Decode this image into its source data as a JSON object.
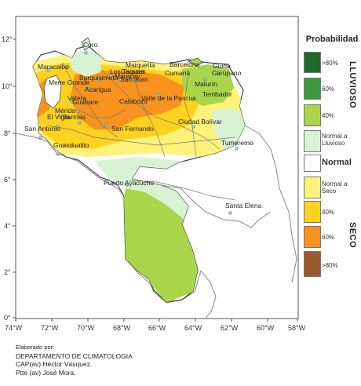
{
  "legend": {
    "title": "Probabilidad",
    "side_lluvioso": "LLUVIOSO",
    "side_seco": "SECO",
    "entries": [
      {
        "label": ">80%",
        "color": "#1f6b2e"
      },
      {
        "label": "60%",
        "color": "#3c9a3e"
      },
      {
        "label": "40%",
        "color": "#a9d64a"
      },
      {
        "label": "Normal a Lluvioso",
        "color": "#d8f2d4"
      },
      {
        "label": "Normal",
        "color": "#ffffff"
      },
      {
        "label": "Normal a Seco",
        "color": "#fff27a"
      },
      {
        "label": "40%",
        "color": "#ffd21f"
      },
      {
        "label": "60%",
        "color": "#f7931e"
      },
      {
        "label": ">80%",
        "color": "#9b5a2b"
      }
    ]
  },
  "axes": {
    "lat_labels": [
      "12°",
      "10°",
      "8°",
      "6°",
      "4°",
      "2°",
      "0°"
    ],
    "lon_labels": [
      "74°W",
      "72°W",
      "70°W",
      "68°W",
      "66°W",
      "64°W",
      "62°W",
      "60°W",
      "58°W"
    ]
  },
  "cities": [
    "Coro",
    "Maracaibo",
    "Mene Grande",
    "Barquisimeto",
    "Maracay",
    "Caracas",
    "Los Teques",
    "Maiquetía",
    "Barcelona",
    "Cumaná",
    "Güiria",
    "Carúpano",
    "Maturín",
    "Tembador",
    "Valera",
    "Acarigua",
    "Guanare",
    "San Juan",
    "Valle de la Pascua",
    "Calabozo",
    "Mérida",
    "El Vigía",
    "Barinas",
    "San Antonio",
    "Guasdualito",
    "San Fernando",
    "Ciudad Bolívar",
    "Tumeremo",
    "Puerto Ayacucho",
    "Santa Elena"
  ],
  "credits": {
    "line1": "Elaborado por:",
    "line2": "DEPARTAMENTO DE CLIMATOLOGIA",
    "line3": "CAP(av) Héctor Vásquez.",
    "line4": "Ptte (av) José Mora."
  }
}
